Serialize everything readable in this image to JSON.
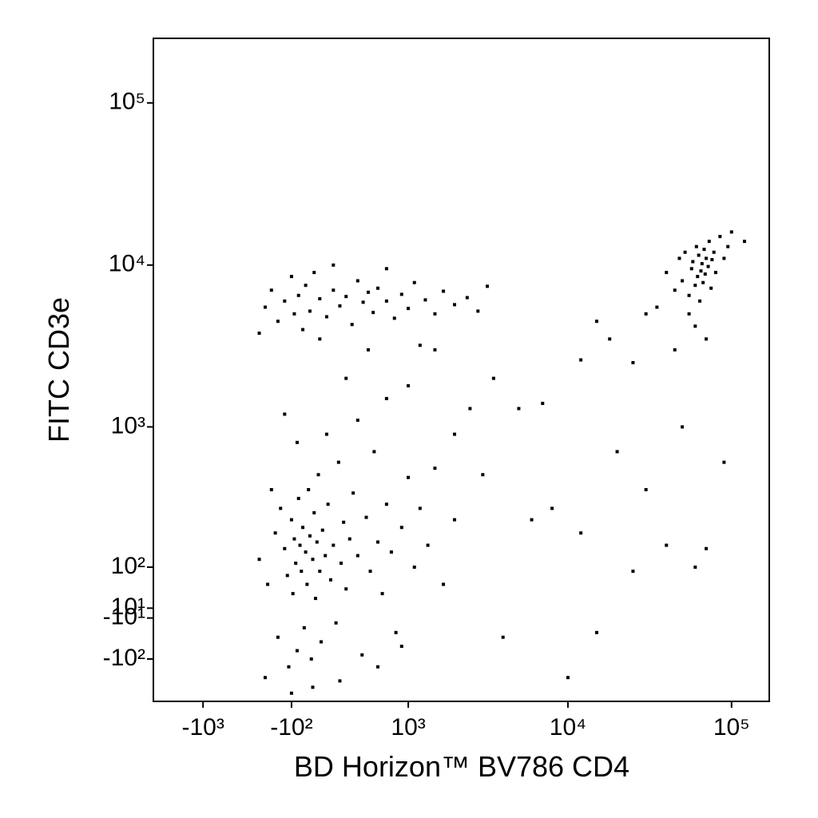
{
  "chart_data": {
    "type": "scatter",
    "x_label": "BD Horizon™ BV786 CD4",
    "y_label": "FITC CD3e",
    "xscale": "biexponential",
    "yscale": "biexponential",
    "color": "#000000",
    "xlim": [
      -2100,
      170000
    ],
    "ylim": [
      -230,
      250000
    ],
    "xticks": [
      {
        "value": -1000,
        "label": "-10³"
      },
      {
        "value": -100,
        "label": "-10²"
      },
      {
        "value": 1000,
        "label": "10³"
      },
      {
        "value": 10000,
        "label": "10⁴"
      },
      {
        "value": 100000,
        "label": "10⁵"
      }
    ],
    "yticks": [
      {
        "value": 100000,
        "label": "10⁵"
      },
      {
        "value": 10000,
        "label": "10⁴"
      },
      {
        "value": 1000,
        "label": "10³"
      },
      {
        "value": 100,
        "label": "10²"
      },
      {
        "value": 10,
        "label": "10¹"
      },
      {
        "value": -10,
        "label": "-10¹"
      },
      {
        "value": -100,
        "label": "-10²"
      }
    ],
    "x": [
      -350,
      -280,
      -220,
      -200,
      -180,
      -150,
      -130,
      -120,
      -100,
      -90,
      -80,
      -70,
      -60,
      -50,
      -40,
      -30,
      -20,
      -10,
      0,
      10,
      20,
      30,
      40,
      50,
      60,
      70,
      80,
      90,
      100,
      110,
      120,
      140,
      160,
      180,
      200,
      220,
      240,
      260,
      280,
      300,
      330,
      360,
      400,
      440,
      480,
      520,
      560,
      600,
      650,
      700,
      760,
      820,
      900,
      1000,
      1100,
      1200,
      1350,
      1500,
      1700,
      2000,
      -300,
      -250,
      -60,
      150,
      400,
      700,
      300,
      -150,
      1000,
      2500,
      -100,
      50,
      250,
      600,
      900,
      -300,
      -250,
      -200,
      -150,
      -100,
      -80,
      -50,
      -20,
      0,
      30,
      60,
      100,
      150,
      200,
      250,
      300,
      350,
      400,
      450,
      500,
      550,
      600,
      700,
      800,
      900,
      1000,
      1100,
      1300,
      1500,
      1700,
      2000,
      2400,
      2800,
      3200,
      -350,
      100,
      500,
      1200,
      200,
      700,
      40000,
      45000,
      48000,
      50000,
      52000,
      55000,
      57000,
      58000,
      60000,
      61000,
      62000,
      63000,
      64000,
      65000,
      66000,
      67000,
      68000,
      69000,
      70000,
      72000,
      73000,
      75000,
      76000,
      78000,
      80000,
      85000,
      90000,
      95000,
      55000,
      60000,
      70000,
      45000,
      35000,
      100000,
      120000,
      15000,
      18000,
      25000,
      30000,
      3500,
      5000,
      7000,
      12000,
      20000,
      30000,
      50000,
      8000,
      12000,
      25000,
      60000,
      4000,
      15000,
      10000,
      3000,
      6000,
      90000,
      40000,
      70000,
      2000,
      1500
    ],
    "values": [
      120,
      60,
      200,
      -50,
      300,
      150,
      80,
      -120,
      250,
      40,
      180,
      110,
      -80,
      350,
      160,
      90,
      220,
      -30,
      140,
      60,
      400,
      190,
      -100,
      120,
      280,
      30,
      170,
      500,
      90,
      -60,
      210,
      130,
      320,
      70,
      160,
      -20,
      600,
      110,
      240,
      50,
      180,
      380,
      130,
      -90,
      260,
      90,
      700,
      170,
      40,
      320,
      140,
      -40,
      220,
      480,
      100,
      300,
      160,
      550,
      60,
      250,
      -150,
      400,
      800,
      900,
      1100,
      1500,
      2000,
      1200,
      1800,
      1300,
      -200,
      -180,
      -160,
      -120,
      -70,
      5500,
      7000,
      4500,
      6000,
      8500,
      5000,
      6500,
      4000,
      7500,
      5200,
      9000,
      6200,
      4800,
      7000,
      5600,
      6400,
      4300,
      8000,
      5900,
      6800,
      5100,
      7200,
      6000,
      4700,
      6600,
      5400,
      7800,
      6100,
      5000,
      6900,
      5700,
      6300,
      5200,
      7400,
      3800,
      3500,
      3000,
      3200,
      10000,
      9500,
      9000,
      7000,
      11000,
      8000,
      12000,
      6500,
      9500,
      10500,
      7500,
      13000,
      8500,
      11500,
      6000,
      9200,
      10200,
      7800,
      12500,
      8800,
      11000,
      9800,
      14000,
      7200,
      10800,
      12000,
      9000,
      15000,
      11000,
      13000,
      5000,
      4200,
      3500,
      3000,
      5500,
      16000,
      14000,
      4500,
      3500,
      2500,
      5000,
      2000,
      1300,
      1400,
      2600,
      700,
      400,
      1000,
      300,
      200,
      90,
      100,
      -50,
      -40,
      -150,
      500,
      250,
      600,
      160,
      150,
      900,
      3000
    ]
  }
}
